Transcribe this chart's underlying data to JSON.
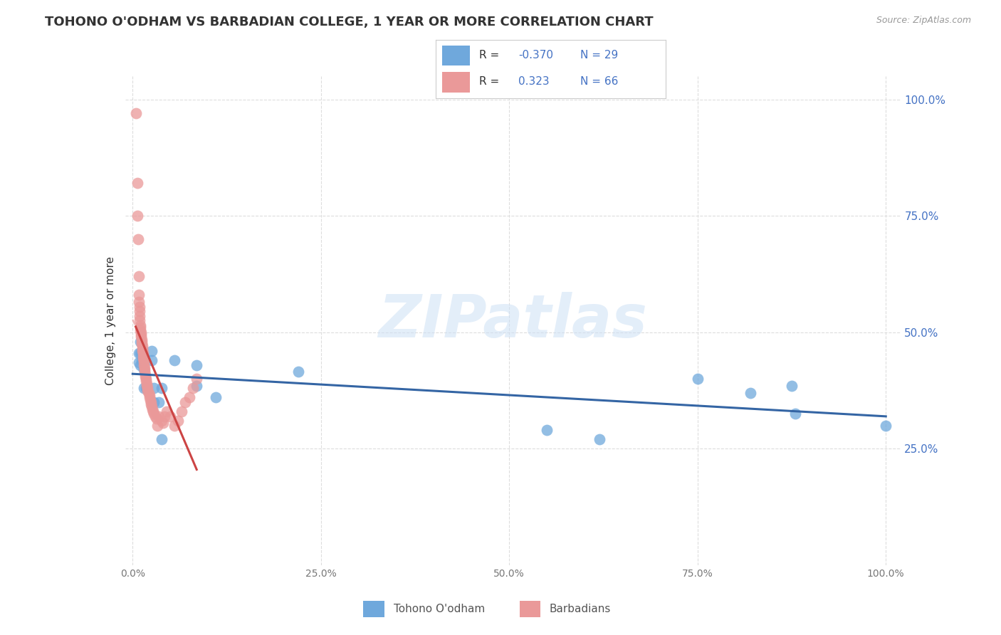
{
  "title": "TOHONO O'ODHAM VS BARBADIAN COLLEGE, 1 YEAR OR MORE CORRELATION CHART",
  "source": "Source: ZipAtlas.com",
  "ylabel": "College, 1 year or more",
  "legend_label1": "Tohono O'odham",
  "legend_label2": "Barbadians",
  "R1": "-0.370",
  "N1": "29",
  "R2": "0.323",
  "N2": "66",
  "watermark": "ZIPatlas",
  "blue_color": "#6fa8dc",
  "pink_color": "#ea9999",
  "blue_line_color": "#3465a4",
  "pink_line_color": "#cc4444",
  "bg_color": "#ffffff",
  "grid_color": "#dddddd",
  "blue_scatter_x": [
    0.8,
    0.8,
    1.0,
    1.0,
    1.0,
    1.2,
    1.2,
    1.5,
    1.5,
    1.8,
    2.5,
    2.5,
    2.8,
    2.8,
    3.5,
    3.8,
    3.8,
    5.5,
    8.5,
    8.5,
    11.0,
    22.0,
    55.0,
    62.0,
    75.0,
    82.0,
    87.5,
    88.0,
    100.0
  ],
  "blue_scatter_y": [
    45.5,
    43.5,
    45.5,
    48.0,
    43.0,
    44.0,
    45.5,
    42.0,
    38.0,
    38.0,
    46.0,
    44.0,
    38.0,
    35.0,
    35.0,
    38.0,
    27.0,
    44.0,
    43.0,
    38.5,
    36.0,
    41.5,
    29.0,
    27.0,
    40.0,
    37.0,
    38.5,
    32.5,
    30.0
  ],
  "pink_scatter_x": [
    0.4,
    0.6,
    0.6,
    0.7,
    0.8,
    0.8,
    0.8,
    0.9,
    0.9,
    0.9,
    0.9,
    1.0,
    1.0,
    1.0,
    1.1,
    1.1,
    1.1,
    1.2,
    1.2,
    1.2,
    1.3,
    1.3,
    1.3,
    1.4,
    1.4,
    1.4,
    1.5,
    1.5,
    1.5,
    1.6,
    1.6,
    1.6,
    1.7,
    1.7,
    1.8,
    1.8,
    1.9,
    1.9,
    2.0,
    2.0,
    2.1,
    2.2,
    2.2,
    2.3,
    2.4,
    2.4,
    2.5,
    2.6,
    2.7,
    2.8,
    3.0,
    3.2,
    3.3,
    3.5,
    3.8,
    4.0,
    4.2,
    4.5,
    5.0,
    5.5,
    6.0,
    6.5,
    7.0,
    7.5,
    8.0,
    8.5
  ],
  "pink_scatter_y": [
    97.0,
    82.0,
    75.0,
    70.0,
    62.0,
    58.0,
    56.5,
    55.5,
    54.5,
    53.5,
    52.5,
    51.5,
    51.0,
    50.5,
    50.0,
    49.5,
    49.0,
    48.5,
    48.0,
    47.5,
    47.0,
    46.5,
    46.0,
    45.5,
    45.0,
    44.5,
    44.0,
    43.5,
    43.0,
    42.5,
    42.0,
    41.5,
    41.0,
    40.5,
    40.0,
    39.5,
    39.0,
    38.5,
    38.0,
    37.5,
    37.0,
    36.5,
    36.0,
    35.5,
    35.0,
    34.5,
    34.0,
    33.5,
    33.0,
    32.5,
    32.0,
    31.5,
    30.0,
    32.0,
    31.0,
    30.5,
    32.0,
    33.0,
    32.0,
    30.0,
    31.0,
    33.0,
    35.0,
    36.0,
    38.0,
    40.0
  ],
  "xlim": [
    0.0,
    100.0
  ],
  "ylim": [
    0.0,
    100.0
  ],
  "yticks": [
    25.0,
    50.0,
    75.0,
    100.0
  ],
  "ytick_labels": [
    "25.0%",
    "50.0%",
    "75.0%",
    "100.0%"
  ],
  "xticks": [
    0.0,
    25.0,
    50.0,
    75.0,
    100.0
  ],
  "xtick_labels": [
    "0.0%",
    "25.0%",
    "50.0%",
    "75.0%",
    "100.0%"
  ]
}
